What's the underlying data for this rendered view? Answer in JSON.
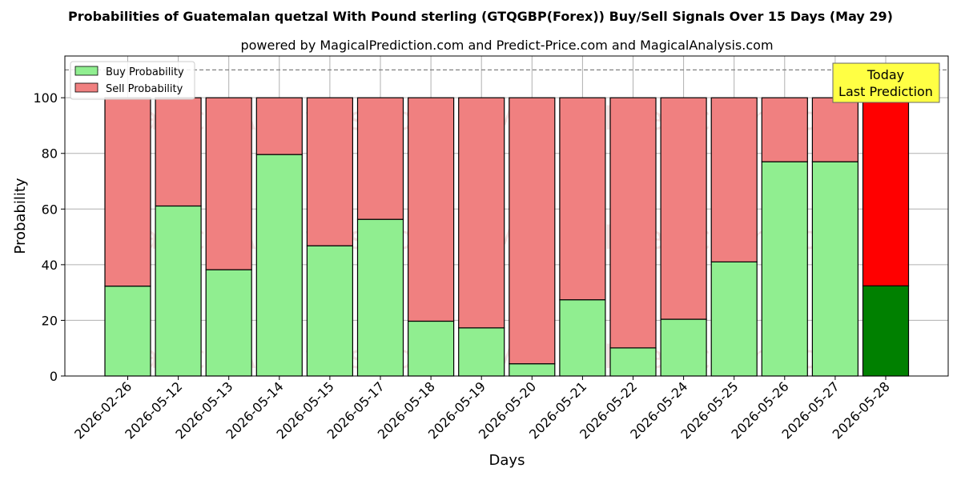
{
  "chart_data": {
    "type": "bar",
    "stacked": true,
    "title": "Probabilities of Guatemalan quetzal With Pound sterling (GTQGBP(Forex)) Buy/Sell Signals Over 15 Days (May 29)",
    "subtitle": "powered by MagicalPrediction.com and Predict-Price.com and MagicalAnalysis.com",
    "xlabel": "Days",
    "ylabel": "Probability",
    "ylim": [
      0,
      115
    ],
    "yticks": [
      0,
      20,
      40,
      60,
      80,
      100
    ],
    "reference_line": 110,
    "grid": true,
    "legend_position": "top-left",
    "categories": [
      "2026-02-26",
      "2026-05-12",
      "2026-05-13",
      "2026-05-14",
      "2026-05-15",
      "2026-05-17",
      "2026-05-18",
      "2026-05-19",
      "2026-05-20",
      "2026-05-21",
      "2026-05-22",
      "2026-05-24",
      "2026-05-25",
      "2026-05-26",
      "2026-05-27",
      "2026-05-28"
    ],
    "series": [
      {
        "name": "Buy Probability",
        "values": [
          32.3,
          61.1,
          38.2,
          79.6,
          46.8,
          56.3,
          19.7,
          17.3,
          4.4,
          27.4,
          10.1,
          20.4,
          41.0,
          77.0,
          77.0,
          32.4
        ]
      },
      {
        "name": "Sell Probability",
        "values": [
          67.7,
          38.9,
          61.8,
          20.4,
          53.2,
          43.7,
          80.3,
          82.7,
          95.6,
          72.6,
          89.9,
          79.6,
          59.0,
          23.0,
          23.0,
          67.6
        ]
      }
    ],
    "colors": {
      "buy": "#90ee90",
      "sell": "#f08080",
      "today_buy": "#008000",
      "today_sell": "#ff0000",
      "today_box": "#ffff44"
    },
    "annotation": {
      "line1": "Today",
      "line2": "Last Prediction"
    },
    "watermarks": [
      "MagicalAnalysis.com",
      "MagicalPrediction.com"
    ]
  }
}
